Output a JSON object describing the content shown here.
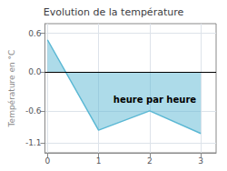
{
  "chart_data": {
    "type": "line",
    "title": "Evolution de la température",
    "ylabel": "Température en °C",
    "x": [
      0,
      1,
      2,
      3
    ],
    "values": [
      0.5,
      -0.9,
      -0.6,
      -0.95
    ],
    "color": "#5bb8d4",
    "xlim": [
      -0.05,
      3.3
    ],
    "ylim": [
      -1.25,
      0.75
    ],
    "xticks": [
      0,
      1,
      2,
      3
    ],
    "yticks": [
      -1.1,
      -0.6,
      {
        "value": 0.0,
        "label": "0.0"
      },
      0.6
    ],
    "grid": true,
    "annotations": [
      {
        "text": "heure par heure",
        "x": 2.1,
        "y": -0.42
      }
    ]
  }
}
